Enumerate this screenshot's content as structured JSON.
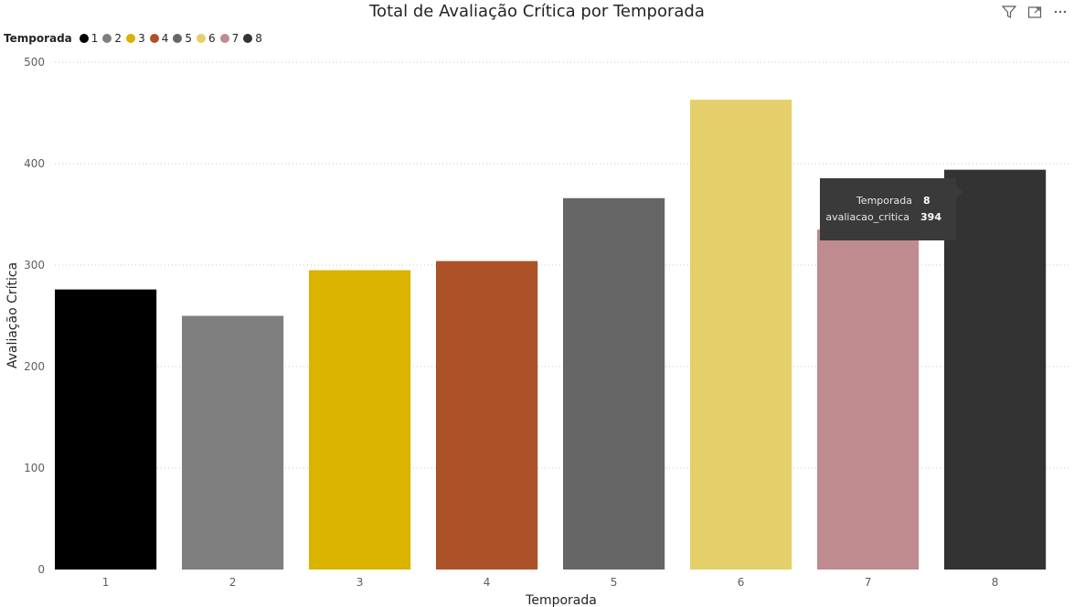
{
  "toolbar": {
    "filter_icon": "filter-icon",
    "focus_icon": "focus-mode-icon",
    "more_icon": "more-options-icon"
  },
  "legend": {
    "title": "Temporada",
    "items": [
      {
        "label": "1",
        "color": "#000000"
      },
      {
        "label": "2",
        "color": "#7f7f7f"
      },
      {
        "label": "3",
        "color": "#d9b300"
      },
      {
        "label": "4",
        "color": "#ad5129"
      },
      {
        "label": "5",
        "color": "#666666"
      },
      {
        "label": "6",
        "color": "#e5cf6a"
      },
      {
        "label": "7",
        "color": "#bf8b8f"
      },
      {
        "label": "8",
        "color": "#333333"
      }
    ]
  },
  "tooltip": {
    "row1_key": "Temporada",
    "row1_value": "8",
    "row2_key": "avaliacao_critica",
    "row2_value": "394"
  },
  "chart_data": {
    "type": "bar",
    "title": "Total de Avaliação Crítica por Temporada",
    "xlabel": "Temporada",
    "ylabel": "Avaliação Crítica",
    "categories": [
      "1",
      "2",
      "3",
      "4",
      "5",
      "6",
      "7",
      "8"
    ],
    "values": [
      276,
      250,
      295,
      304,
      366,
      463,
      335,
      394
    ],
    "colors": [
      "#000000",
      "#7f7f7f",
      "#d9b300",
      "#ad5129",
      "#666666",
      "#e5cf6a",
      "#bf8b8f",
      "#333333"
    ],
    "ylim": [
      0,
      500
    ],
    "yticks": [
      0,
      100,
      200,
      300,
      400,
      500
    ],
    "grid": true,
    "legend_position": "top-left"
  }
}
